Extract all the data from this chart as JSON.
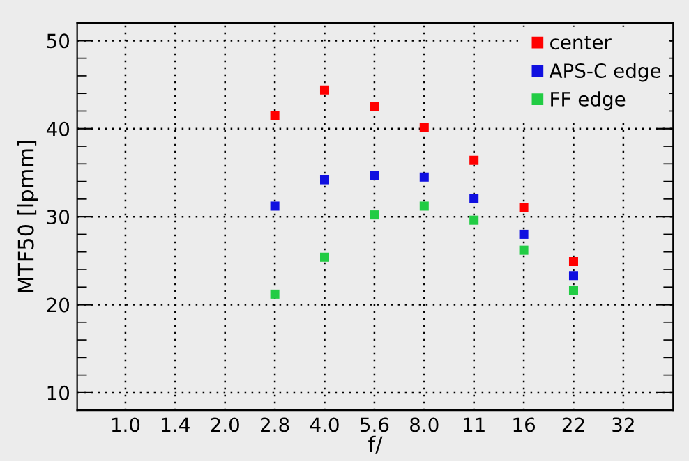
{
  "chart_data": {
    "type": "scatter",
    "xlabel": "f/",
    "ylabel": "MTF50 [lpmm]",
    "categories": [
      "1.0",
      "1.4",
      "2.0",
      "2.8",
      "4.0",
      "5.6",
      "8.0",
      "11",
      "16",
      "22",
      "32"
    ],
    "series": [
      {
        "name": "center",
        "color": "#ff0000",
        "values": [
          null,
          null,
          null,
          41.5,
          44.4,
          42.5,
          40.1,
          36.4,
          31.0,
          24.9,
          null
        ]
      },
      {
        "name": "APS-C edge",
        "color": "#1010e0",
        "values": [
          null,
          null,
          null,
          31.2,
          34.2,
          34.7,
          34.5,
          32.1,
          28.0,
          23.3,
          null
        ]
      },
      {
        "name": "FF edge",
        "color": "#22cc44",
        "values": [
          null,
          null,
          null,
          21.2,
          25.4,
          30.2,
          31.2,
          29.6,
          26.2,
          21.6,
          null
        ]
      }
    ],
    "ylim": [
      8,
      52
    ],
    "yticks": [
      10,
      20,
      30,
      40,
      50
    ],
    "grid": true,
    "legend": "top right",
    "marker": "square"
  }
}
